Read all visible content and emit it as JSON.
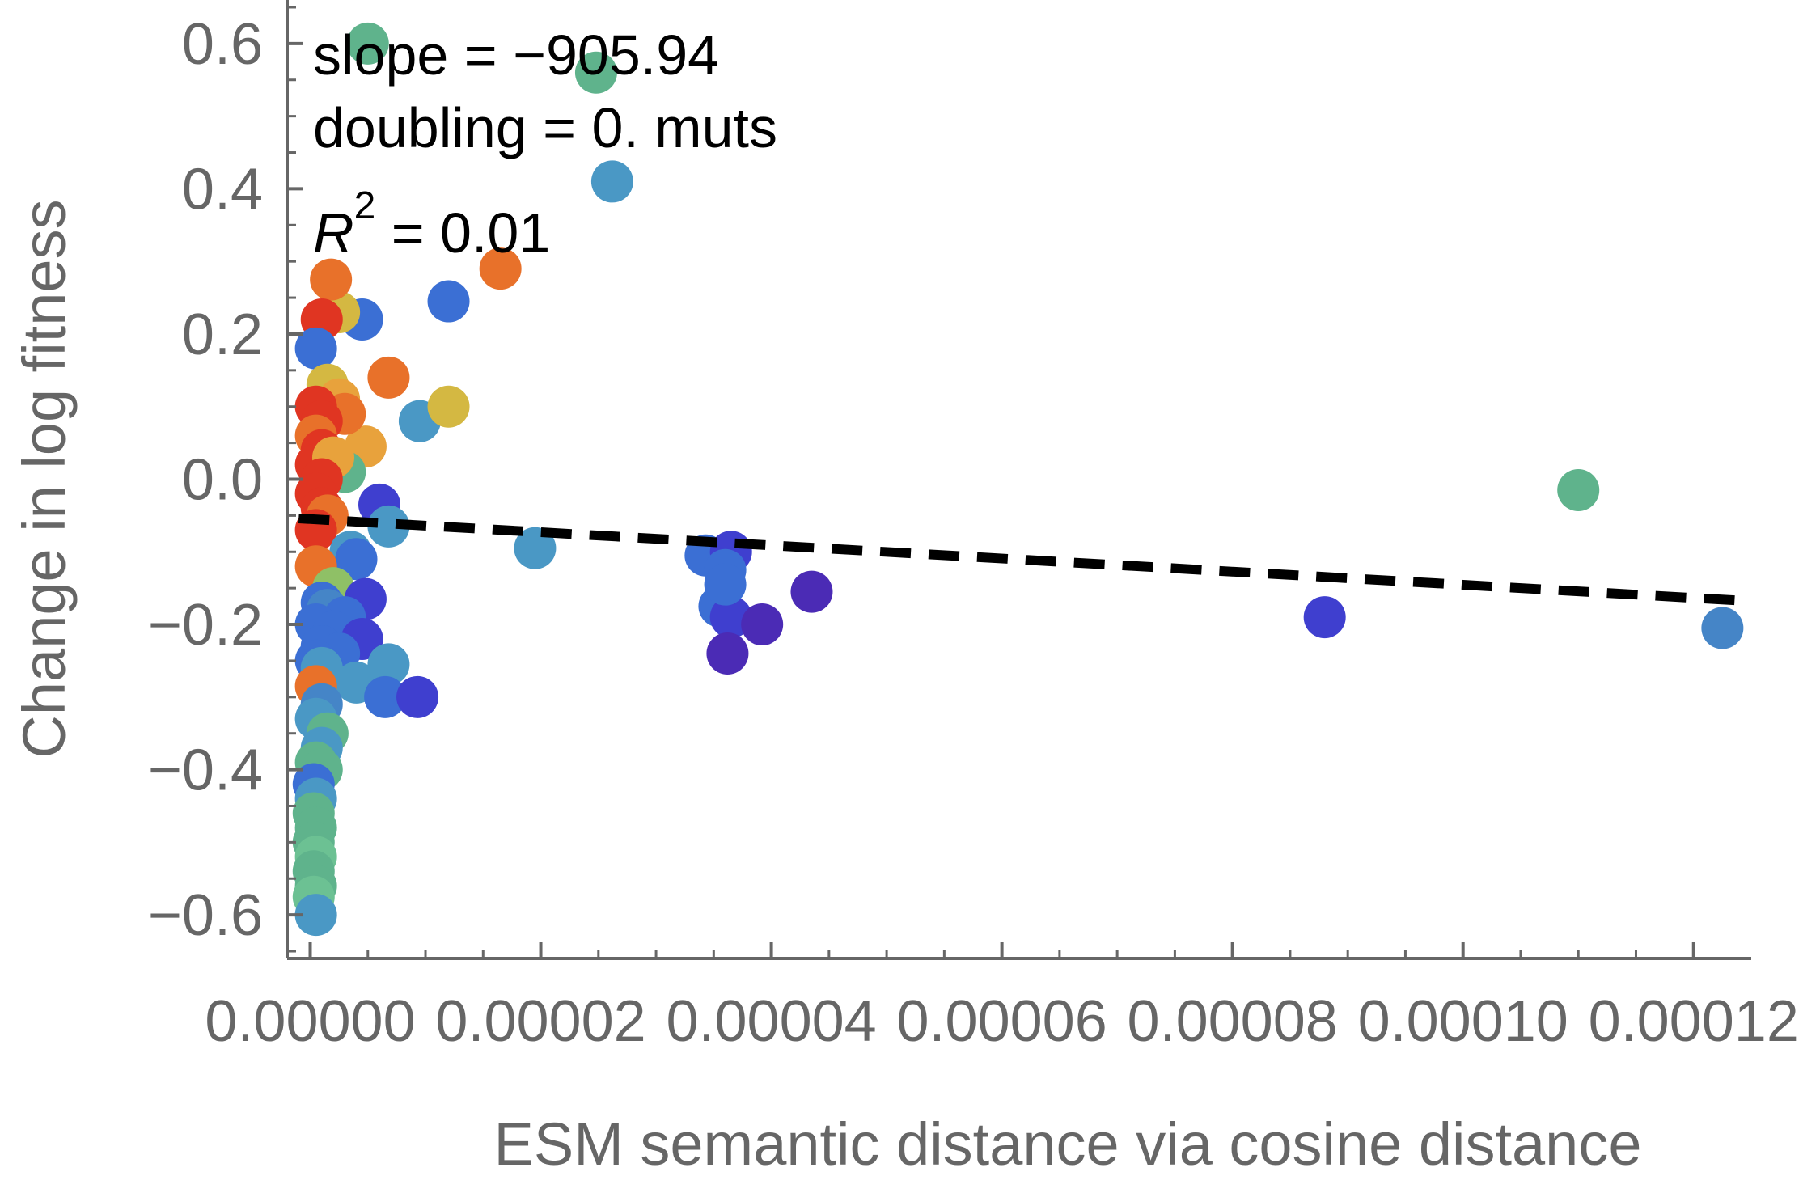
{
  "chart_data": {
    "type": "scatter",
    "xlabel": "ESM semantic distance via cosine distance",
    "ylabel": "Change in log fitness",
    "xlim": [
      -2e-06,
      0.000125
    ],
    "ylim": [
      -0.66,
      0.66
    ],
    "x_ticks": [
      {
        "value": 0.0,
        "label": "0.00000"
      },
      {
        "value": 2e-05,
        "label": "0.00002"
      },
      {
        "value": 4e-05,
        "label": "0.00004"
      },
      {
        "value": 6e-05,
        "label": "0.00006"
      },
      {
        "value": 8e-05,
        "label": "0.00008"
      },
      {
        "value": 0.0001,
        "label": "0.00010"
      },
      {
        "value": 0.00012,
        "label": "0.00012"
      }
    ],
    "y_ticks": [
      {
        "value": 0.6,
        "label": "0.6"
      },
      {
        "value": 0.4,
        "label": "0.4"
      },
      {
        "value": 0.2,
        "label": "0.2"
      },
      {
        "value": 0.0,
        "label": "0.0"
      },
      {
        "value": -0.2,
        "label": "−0.2"
      },
      {
        "value": -0.4,
        "label": "−0.4"
      },
      {
        "value": -0.6,
        "label": "−0.6"
      }
    ],
    "annotations": {
      "slope": "slope = −905.94",
      "doubling": "doubling = 0. muts",
      "r2_symbol": "R",
      "r2_exp": "2",
      "r2_value": " = 0.01"
    },
    "fit_line": {
      "style": "dashed",
      "color": "#000000",
      "x": [
        -1e-06,
        0.000125
      ],
      "y": [
        -0.054,
        -0.168
      ]
    },
    "grid": false,
    "legend": "none",
    "points": [
      {
        "x": 1.2e-05,
        "y": 0.245,
        "c": "#3b6fd4"
      },
      {
        "x": 1.65e-05,
        "y": 0.29,
        "c": "#e8712a"
      },
      {
        "x": 2.48e-05,
        "y": 0.56,
        "c": "#5fb38c"
      },
      {
        "x": 2.62e-05,
        "y": 0.41,
        "c": "#4a98c5"
      },
      {
        "x": 5e-06,
        "y": 0.6,
        "c": "#5fb38c"
      },
      {
        "x": 1.95e-05,
        "y": -0.095,
        "c": "#4a98c5"
      },
      {
        "x": 3.43e-05,
        "y": -0.105,
        "c": "#3b6fd4"
      },
      {
        "x": 3.65e-05,
        "y": -0.1,
        "c": "#3f3fcf"
      },
      {
        "x": 3.6e-05,
        "y": -0.125,
        "c": "#3b6fd4"
      },
      {
        "x": 3.55e-05,
        "y": -0.175,
        "c": "#3b6fd4"
      },
      {
        "x": 3.65e-05,
        "y": -0.19,
        "c": "#3f3fcf"
      },
      {
        "x": 3.62e-05,
        "y": -0.24,
        "c": "#4b2bb5"
      },
      {
        "x": 3.92e-05,
        "y": -0.2,
        "c": "#4b2bb5"
      },
      {
        "x": 4.35e-05,
        "y": -0.155,
        "c": "#4b2bb5"
      },
      {
        "x": 3.6e-05,
        "y": -0.145,
        "c": "#3b6fd4"
      },
      {
        "x": 0.00011,
        "y": -0.015,
        "c": "#5fb38c"
      },
      {
        "x": 0.0001225,
        "y": -0.205,
        "c": "#4585c7"
      },
      {
        "x": 9.5e-06,
        "y": 0.08,
        "c": "#4a98c5"
      },
      {
        "x": 1.2e-05,
        "y": 0.1,
        "c": "#d4b842"
      },
      {
        "x": 6.8e-06,
        "y": 0.14,
        "c": "#e8712a"
      },
      {
        "x": 4.8e-06,
        "y": 0.045,
        "c": "#e8a23c"
      },
      {
        "x": 4.5e-06,
        "y": 0.22,
        "c": "#3b6fd4"
      },
      {
        "x": 2.5e-06,
        "y": 0.23,
        "c": "#d4b842"
      },
      {
        "x": 1.8e-06,
        "y": 0.275,
        "c": "#e8712a"
      },
      {
        "x": 1e-06,
        "y": 0.22,
        "c": "#e03522"
      },
      {
        "x": 5e-07,
        "y": 0.18,
        "c": "#3b6fd4"
      },
      {
        "x": 1.5e-06,
        "y": 0.13,
        "c": "#d4b842"
      },
      {
        "x": 2.5e-06,
        "y": 0.11,
        "c": "#e8a23c"
      },
      {
        "x": 3e-06,
        "y": 0.09,
        "c": "#e8712a"
      },
      {
        "x": 5e-07,
        "y": 0.1,
        "c": "#e03522"
      },
      {
        "x": 1e-06,
        "y": 0.08,
        "c": "#e03522"
      },
      {
        "x": 5e-07,
        "y": 0.06,
        "c": "#e8712a"
      },
      {
        "x": 1e-06,
        "y": 0.04,
        "c": "#e03522"
      },
      {
        "x": 5e-07,
        "y": 0.02,
        "c": "#e03522"
      },
      {
        "x": 3e-06,
        "y": 0.01,
        "c": "#5fb38c"
      },
      {
        "x": 2e-06,
        "y": 0.03,
        "c": "#e8a23c"
      },
      {
        "x": 1e-06,
        "y": 0.0,
        "c": "#e03522"
      },
      {
        "x": 5e-07,
        "y": -0.02,
        "c": "#e03522"
      },
      {
        "x": 1e-06,
        "y": -0.04,
        "c": "#e03522"
      },
      {
        "x": 1.5e-06,
        "y": -0.05,
        "c": "#e8712a"
      },
      {
        "x": 5e-07,
        "y": -0.07,
        "c": "#e03522"
      },
      {
        "x": 3.5e-06,
        "y": -0.1,
        "c": "#4a98c5"
      },
      {
        "x": 4e-06,
        "y": -0.11,
        "c": "#3b6fd4"
      },
      {
        "x": 6e-06,
        "y": -0.035,
        "c": "#3f3fcf"
      },
      {
        "x": 6.8e-06,
        "y": -0.065,
        "c": "#4a98c5"
      },
      {
        "x": 5e-07,
        "y": -0.12,
        "c": "#e8712a"
      },
      {
        "x": 2e-06,
        "y": -0.15,
        "c": "#8fc066"
      },
      {
        "x": 4.8e-06,
        "y": -0.165,
        "c": "#3f3fcf"
      },
      {
        "x": 1e-06,
        "y": -0.17,
        "c": "#3b6fd4"
      },
      {
        "x": 1.5e-06,
        "y": -0.18,
        "c": "#4585c7"
      },
      {
        "x": 3e-06,
        "y": -0.19,
        "c": "#3b6fd4"
      },
      {
        "x": 5e-07,
        "y": -0.2,
        "c": "#3b6fd4"
      },
      {
        "x": 2e-06,
        "y": -0.21,
        "c": "#3b6fd4"
      },
      {
        "x": 4.5e-06,
        "y": -0.22,
        "c": "#3f3fcf"
      },
      {
        "x": 1e-06,
        "y": -0.23,
        "c": "#3b6fd4"
      },
      {
        "x": 2.5e-06,
        "y": -0.24,
        "c": "#3b6fd4"
      },
      {
        "x": 5e-07,
        "y": -0.25,
        "c": "#3b6fd4"
      },
      {
        "x": 8.8e-05,
        "y": -0.19,
        "c": "#3f3fcf"
      },
      {
        "x": 6.8e-06,
        "y": -0.255,
        "c": "#4a98c5"
      },
      {
        "x": 4e-06,
        "y": -0.28,
        "c": "#4a98c5"
      },
      {
        "x": 6.5e-06,
        "y": -0.3,
        "c": "#3b6fd4"
      },
      {
        "x": 9.3e-06,
        "y": -0.3,
        "c": "#3f3fcf"
      },
      {
        "x": 1e-06,
        "y": -0.26,
        "c": "#4a98c5"
      },
      {
        "x": 5e-07,
        "y": -0.285,
        "c": "#e8712a"
      },
      {
        "x": 1e-06,
        "y": -0.31,
        "c": "#4585c7"
      },
      {
        "x": 5e-07,
        "y": -0.33,
        "c": "#4a98c5"
      },
      {
        "x": 1.5e-06,
        "y": -0.35,
        "c": "#5fb38c"
      },
      {
        "x": 1e-06,
        "y": -0.37,
        "c": "#4a98c5"
      },
      {
        "x": 5e-07,
        "y": -0.39,
        "c": "#5fb38c"
      },
      {
        "x": 1e-06,
        "y": -0.4,
        "c": "#5fb38c"
      },
      {
        "x": 3e-07,
        "y": -0.42,
        "c": "#3b6fd4"
      },
      {
        "x": 5e-07,
        "y": -0.44,
        "c": "#4a98c5"
      },
      {
        "x": 3e-07,
        "y": -0.46,
        "c": "#5fb38c"
      },
      {
        "x": 5e-07,
        "y": -0.48,
        "c": "#5fb38c"
      },
      {
        "x": 3e-07,
        "y": -0.5,
        "c": "#5fb38c"
      },
      {
        "x": 5e-07,
        "y": -0.52,
        "c": "#6cc193"
      },
      {
        "x": 3e-07,
        "y": -0.54,
        "c": "#5fb38c"
      },
      {
        "x": 5e-07,
        "y": -0.56,
        "c": "#5fb38c"
      },
      {
        "x": 3e-07,
        "y": -0.575,
        "c": "#6cc193"
      },
      {
        "x": 5e-07,
        "y": -0.6,
        "c": "#4a98c5"
      }
    ]
  }
}
